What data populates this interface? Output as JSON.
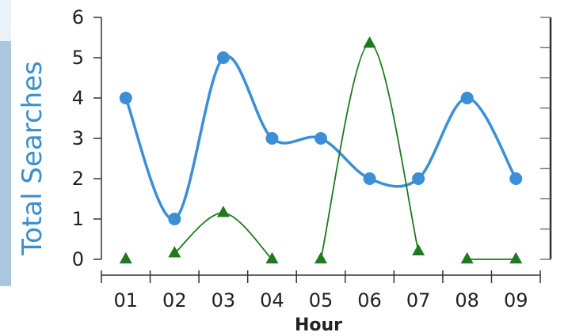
{
  "chart_data": {
    "type": "line",
    "ylabel": "Total Searches",
    "xlabel": "Hour",
    "categories": [
      "01",
      "02",
      "03",
      "04",
      "05",
      "06",
      "07",
      "08",
      "09"
    ],
    "ylim": [
      0,
      6
    ],
    "yticks": [
      "0",
      "1",
      "2",
      "3",
      "4",
      "5",
      "6"
    ],
    "series": [
      {
        "values": [
          4,
          1,
          5,
          3,
          3,
          2,
          2,
          4,
          2
        ],
        "color": "#3a8fd6",
        "marker": "circle"
      },
      {
        "values": [
          0,
          0.15,
          1.15,
          0,
          0,
          5.35,
          0.2,
          0,
          0
        ],
        "color": "#1e7a1e",
        "marker": "triangle",
        "segments": [
          [
            1,
            2,
            3
          ],
          [
            4,
            5,
            6
          ],
          [
            7,
            8
          ]
        ]
      }
    ],
    "grid": false,
    "legend": "none"
  }
}
